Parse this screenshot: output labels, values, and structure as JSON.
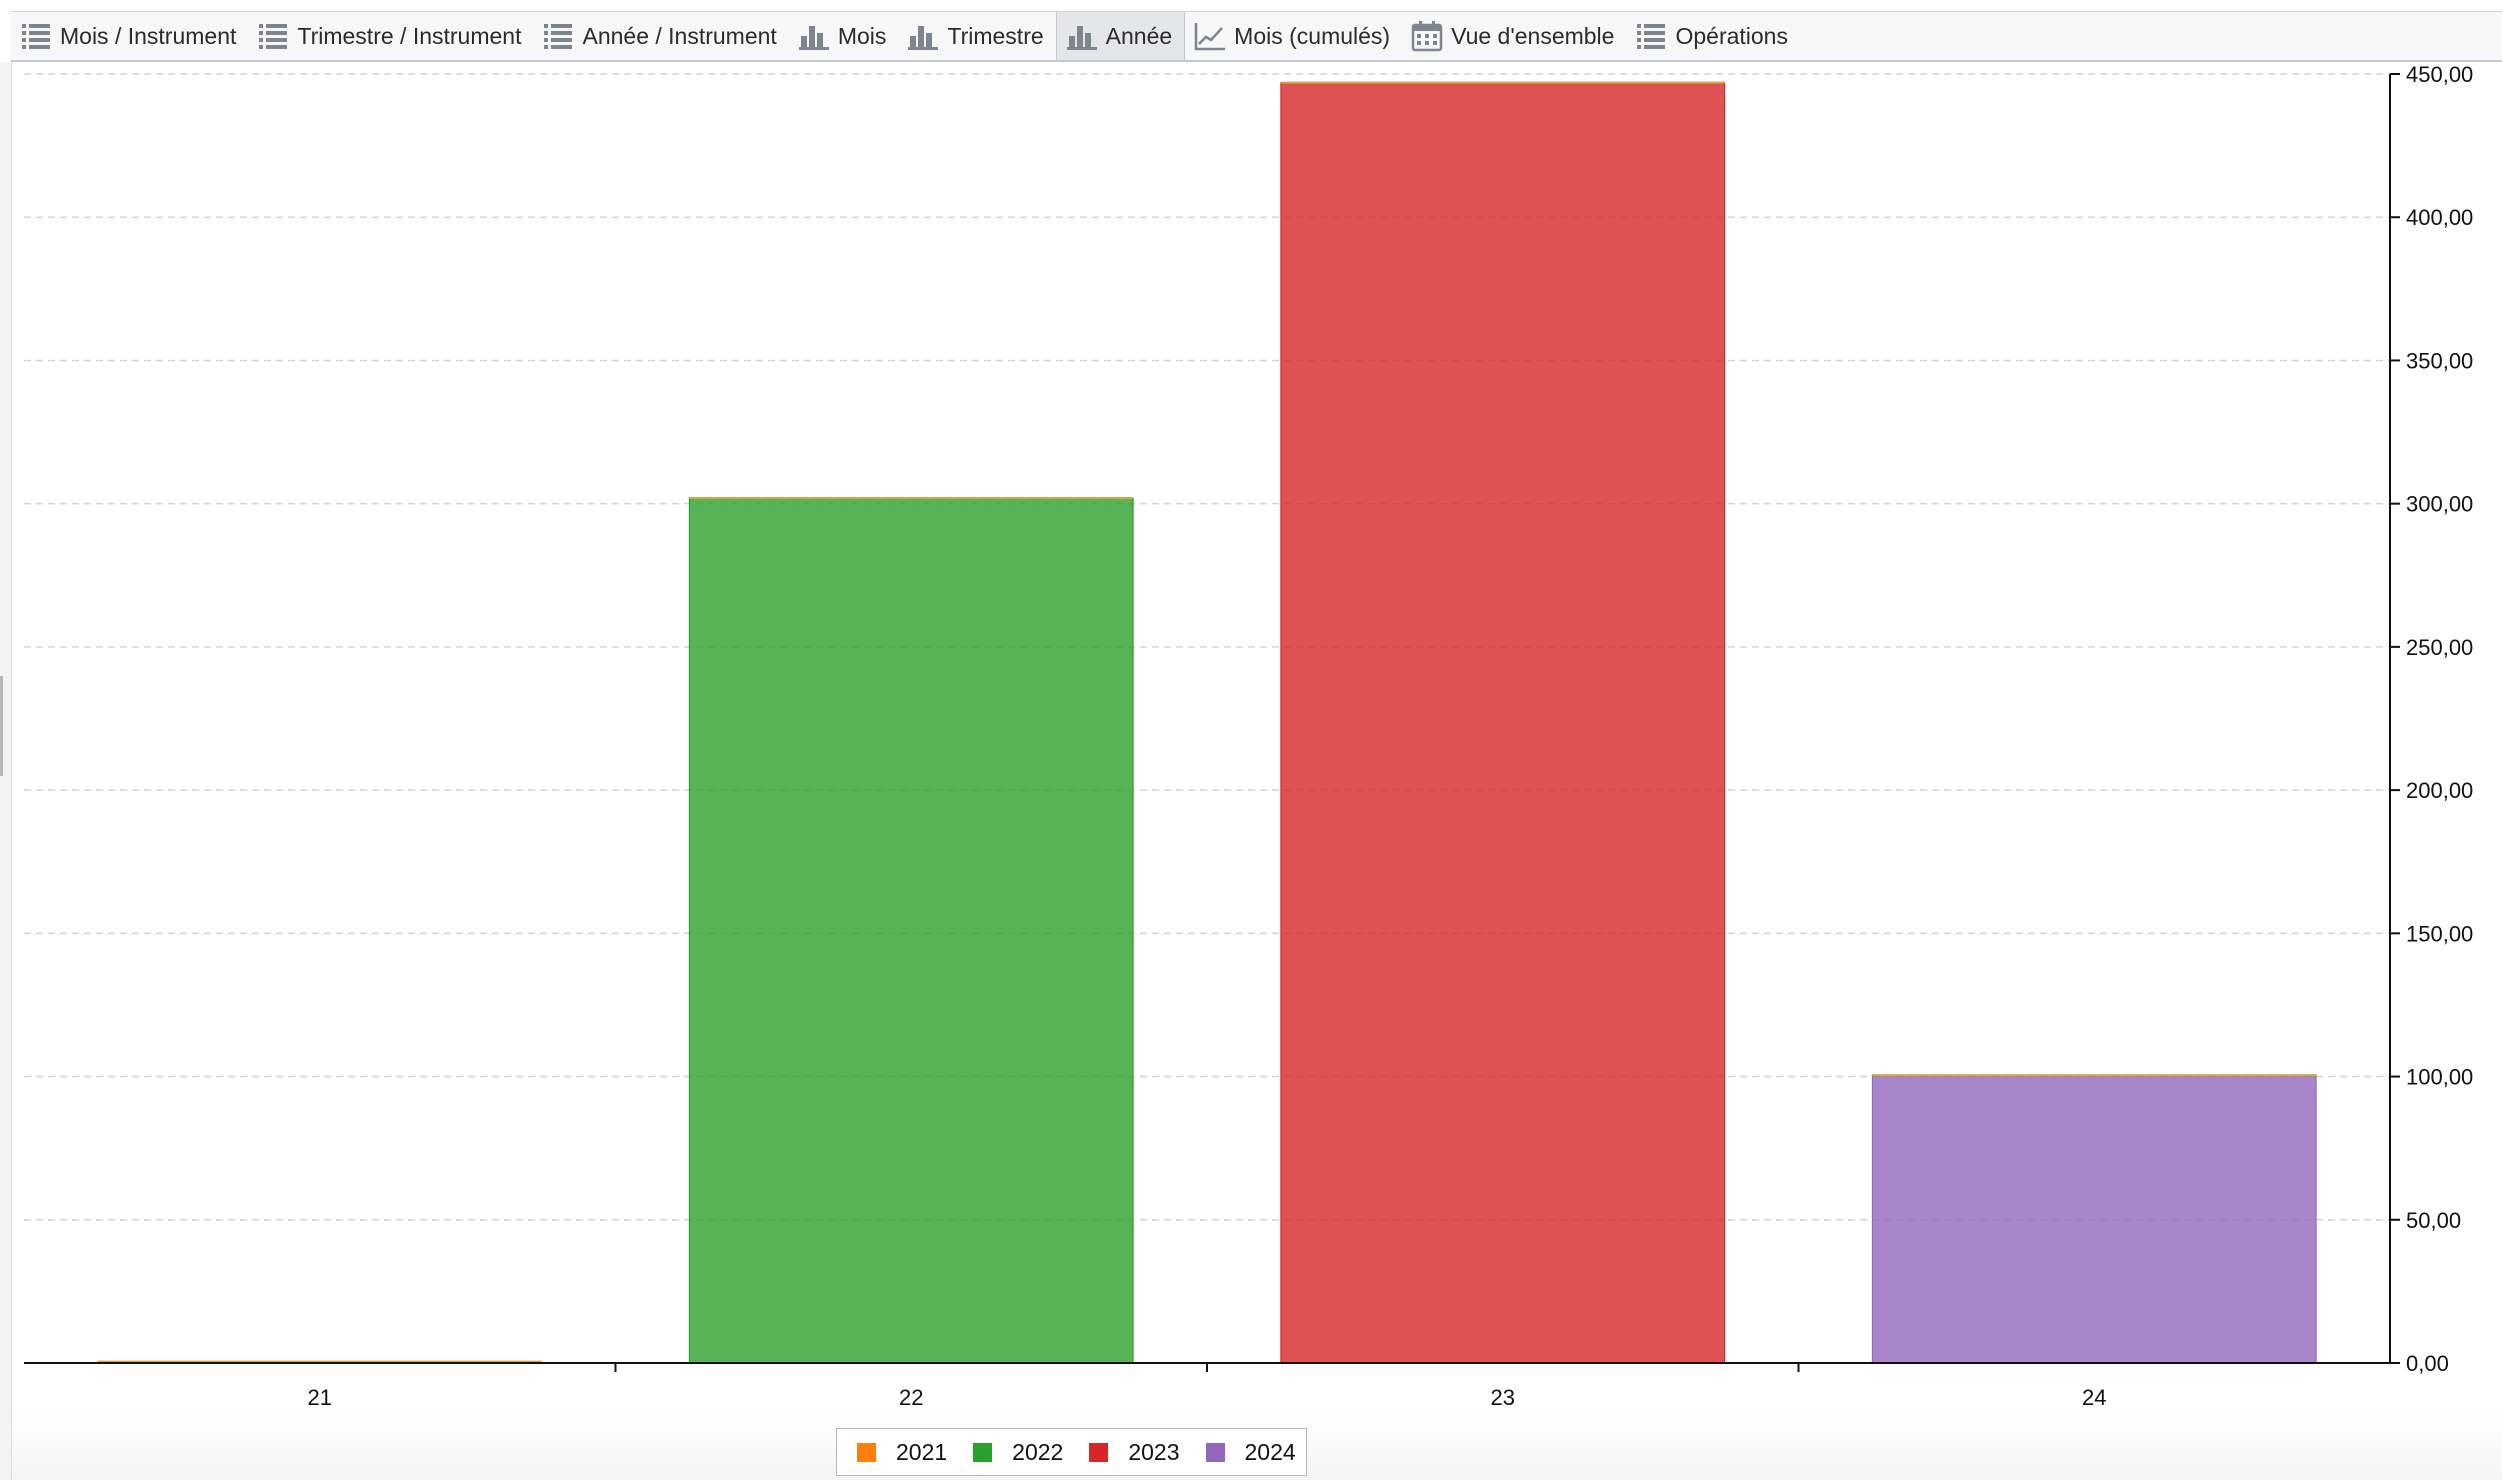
{
  "toolbar": {
    "tabs": [
      {
        "label": "Mois / Instrument",
        "icon": "list-icon",
        "active": false
      },
      {
        "label": "Trimestre / Instrument",
        "icon": "list-icon",
        "active": false
      },
      {
        "label": "Année / Instrument",
        "icon": "list-icon",
        "active": false
      },
      {
        "label": "Mois",
        "icon": "bar-chart-icon",
        "active": false
      },
      {
        "label": "Trimestre",
        "icon": "bar-chart-icon",
        "active": false
      },
      {
        "label": "Année",
        "icon": "bar-chart-icon",
        "active": true
      },
      {
        "label": "Mois (cumulés)",
        "icon": "line-chart-icon",
        "active": false
      },
      {
        "label": "Vue d'ensemble",
        "icon": "calendar-icon",
        "active": false
      },
      {
        "label": "Opérations",
        "icon": "list-icon",
        "active": false
      }
    ]
  },
  "chart_data": {
    "type": "bar",
    "categories": [
      "21",
      "22",
      "23",
      "24"
    ],
    "series": [
      {
        "name": "2021",
        "color": "#ff7f0e",
        "values": [
          0.5,
          0,
          0,
          0
        ]
      },
      {
        "name": "2022",
        "color": "#2ca02c",
        "values": [
          0,
          302,
          0,
          0
        ]
      },
      {
        "name": "2023",
        "color": "#d62728",
        "values": [
          0,
          0,
          447,
          0
        ]
      },
      {
        "name": "2024",
        "color": "#9467bd",
        "values": [
          0,
          0,
          0,
          100.5
        ]
      }
    ],
    "ylim": [
      0,
      450
    ],
    "yticks": [
      "0,00",
      "50,00",
      "100,00",
      "150,00",
      "200,00",
      "250,00",
      "300,00",
      "350,00",
      "400,00",
      "450,00"
    ],
    "y_axis_side": "right",
    "grid": true,
    "legend_position": "bottom-center",
    "title": "",
    "xlabel": "",
    "ylabel": ""
  }
}
